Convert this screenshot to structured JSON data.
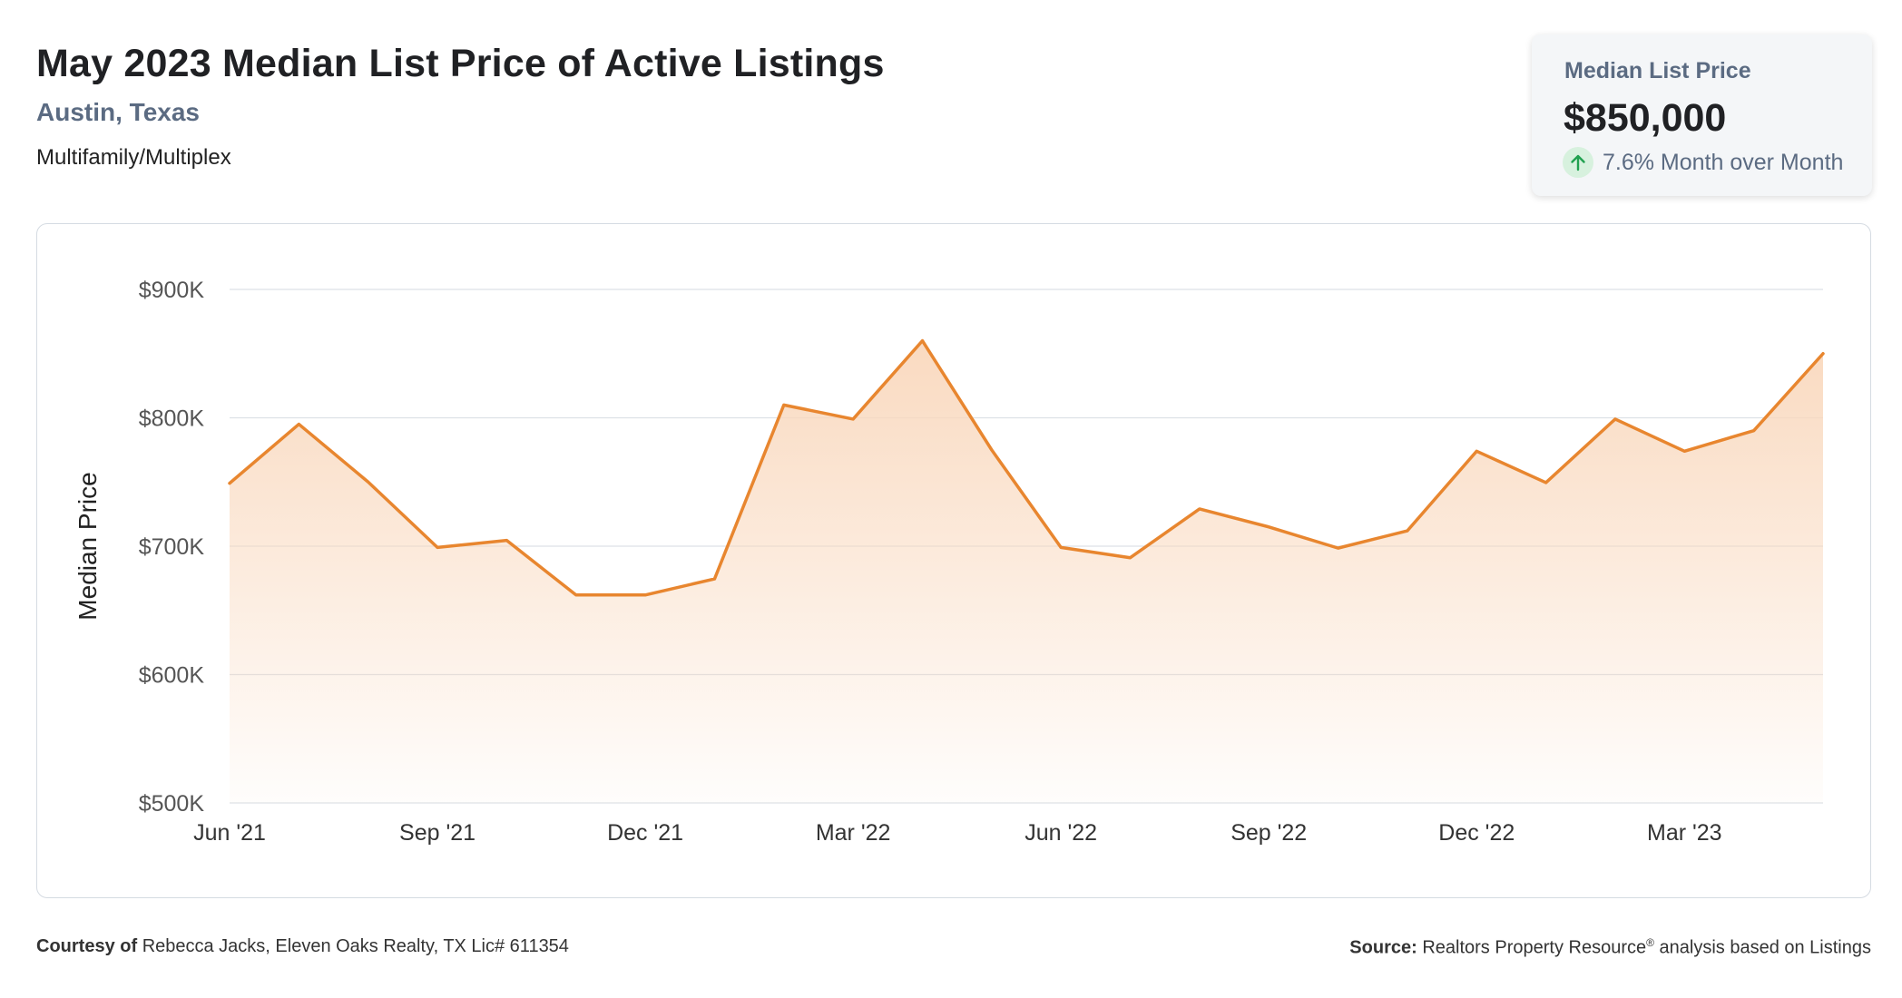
{
  "header": {
    "title": "May 2023 Median List Price of Active Listings",
    "location": "Austin, Texas",
    "property_type": "Multifamily/Multiplex"
  },
  "kpi": {
    "label": "Median List Price",
    "value": "$850,000",
    "change_text": "7.6% Month over Month",
    "direction_icon": "arrow-up-icon",
    "direction_color": "#21a150"
  },
  "colors": {
    "line": "#e8862f",
    "area_top": "#f9d8bd",
    "grid": "#dde1e6",
    "axis_text": "#555555"
  },
  "chart_data": {
    "type": "area",
    "ylabel": "Median Price",
    "ylim": [
      500000,
      900000
    ],
    "y_ticks": [
      {
        "value": 900000,
        "label": "$900K"
      },
      {
        "value": 800000,
        "label": "$800K"
      },
      {
        "value": 700000,
        "label": "$700K"
      },
      {
        "value": 600000,
        "label": "$600K"
      },
      {
        "value": 500000,
        "label": "$500K"
      }
    ],
    "x_tick_labels": [
      {
        "index": 0,
        "label": "Jun '21"
      },
      {
        "index": 3,
        "label": "Sep '21"
      },
      {
        "index": 6,
        "label": "Dec '21"
      },
      {
        "index": 9,
        "label": "Mar '22"
      },
      {
        "index": 12,
        "label": "Jun '22"
      },
      {
        "index": 15,
        "label": "Sep '22"
      },
      {
        "index": 18,
        "label": "Dec '22"
      },
      {
        "index": 21,
        "label": "Mar '23"
      }
    ],
    "x": [
      "Jun 2021",
      "Jul 2021",
      "Aug 2021",
      "Sep 2021",
      "Oct 2021",
      "Nov 2021",
      "Dec 2021",
      "Jan 2022",
      "Feb 2022",
      "Mar 2022",
      "Apr 2022",
      "May 2022",
      "Jun 2022",
      "Jul 2022",
      "Aug 2022",
      "Sep 2022",
      "Oct 2022",
      "Nov 2022",
      "Dec 2022",
      "Jan 2023",
      "Feb 2023",
      "Mar 2023",
      "Apr 2023",
      "May 2023"
    ],
    "series": [
      {
        "values": [
          749000,
          795000,
          750000,
          699000,
          704500,
          662000,
          662000,
          674500,
          810000,
          799000,
          860000,
          775000,
          699000,
          691000,
          729000,
          715000,
          698500,
          712000,
          774000,
          749500,
          799000,
          774000,
          790000,
          850000
        ]
      }
    ]
  },
  "footer": {
    "courtesy_label": "Courtesy of",
    "courtesy_text": "Rebecca Jacks, Eleven Oaks Realty, TX Lic# 611354",
    "source_label": "Source:",
    "source_text": "Realtors Property Resource",
    "source_mark": "®",
    "source_suffix": "analysis based on Listings"
  }
}
